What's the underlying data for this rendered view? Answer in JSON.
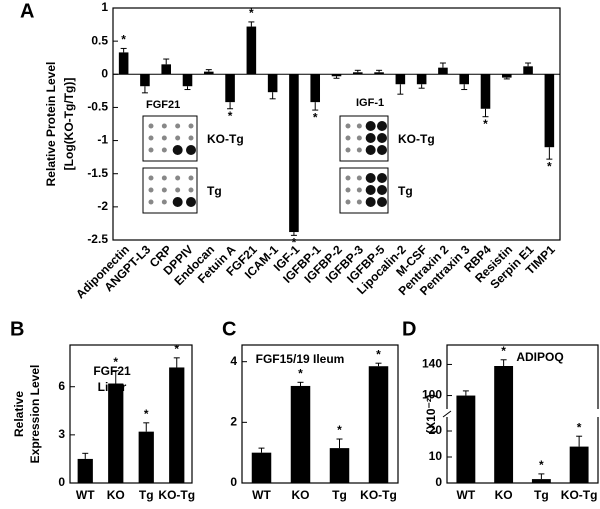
{
  "chart_data": [
    {
      "type": "bar",
      "panel_label": "A",
      "ylabel": [
        "Relative Protein Level",
        "[Log(KO-Tg/Tg)]"
      ],
      "categories": [
        "Adiponectin",
        "ANGPT-L3",
        "CRP",
        "DPPIV",
        "Endocan",
        "Fetuin A",
        "FGF21",
        "ICAM-1",
        "IGF-1",
        "IGFBP-1",
        "IGFBP-2",
        "IGFBP-3",
        "IGFBP-5",
        "Lipocalin-2",
        "M-CSF",
        "Pentraxin 2",
        "Pentraxin 3",
        "RBP4",
        "Resistin",
        "Serpin E1",
        "TIMP1"
      ],
      "values": [
        0.33,
        -0.18,
        0.15,
        -0.18,
        0.04,
        -0.42,
        0.72,
        -0.27,
        -2.38,
        -0.42,
        -0.03,
        0.03,
        0.03,
        -0.15,
        -0.15,
        0.1,
        -0.15,
        -0.52,
        -0.05,
        0.12,
        -1.1
      ],
      "errors": [
        0.06,
        0.1,
        0.08,
        0.05,
        0.03,
        0.1,
        0.07,
        0.1,
        0.05,
        0.12,
        0.03,
        0.03,
        0.03,
        0.15,
        0.06,
        0.07,
        0.08,
        0.12,
        0.02,
        0.05,
        0.18
      ],
      "annotations": [
        "*",
        null,
        null,
        null,
        null,
        "*",
        "*",
        null,
        "*",
        "*",
        null,
        null,
        null,
        null,
        null,
        null,
        null,
        "*",
        null,
        null,
        "*"
      ],
      "color": "#000000",
      "ylim": [
        -2.5,
        1
      ],
      "yticks": [
        -2.5,
        -2,
        -1.5,
        -1,
        -0.5,
        0,
        0.5,
        1
      ],
      "insets": [
        {
          "label": "FGF21",
          "rows": [
            "KO-Tg",
            "Tg"
          ]
        },
        {
          "label": "IGF-1",
          "rows": [
            "KO-Tg",
            "Tg"
          ]
        }
      ]
    },
    {
      "type": "bar",
      "panel_label": "B",
      "ylabel": [
        "Relative",
        "Expression Level"
      ],
      "title": [
        "FGF21",
        "Liver"
      ],
      "categories": [
        "WT",
        "KO",
        "Tg",
        "KO-Tg"
      ],
      "values": [
        1.5,
        6.2,
        3.2,
        7.2
      ],
      "errors": [
        0.35,
        0.8,
        0.55,
        0.6
      ],
      "annotations": [
        null,
        "*",
        "*",
        "*"
      ],
      "color": "#000000",
      "ylim": [
        0,
        8.6
      ],
      "yticks": [
        0,
        3,
        6
      ]
    },
    {
      "type": "bar",
      "panel_label": "C",
      "title": [
        "FGF15/19  Ileum"
      ],
      "categories": [
        "WT",
        "KO",
        "Tg",
        "KO-Tg"
      ],
      "values": [
        1.0,
        3.2,
        1.15,
        3.85
      ],
      "errors": [
        0.15,
        0.12,
        0.3,
        0.1
      ],
      "annotations": [
        null,
        "*",
        "*",
        "*"
      ],
      "color": "#000000",
      "ylim": [
        0,
        4.55
      ],
      "yticks": [
        0,
        2,
        4
      ]
    },
    {
      "type": "bar",
      "panel_label": "D",
      "ylabel": [
        "(X10⁻²)"
      ],
      "title": [
        "ADIPOQ"
      ],
      "categories": [
        "WT",
        "KO",
        "Tg",
        "KO-Tg"
      ],
      "values": [
        100,
        138,
        1.5,
        14
      ],
      "errors": [
        6,
        8,
        2,
        4
      ],
      "annotations": [
        null,
        "*",
        "*",
        "*"
      ],
      "color": "#000000",
      "ylim": [
        0,
        165
      ],
      "ybreak": [
        25,
        84
      ],
      "yticks": [
        0,
        10,
        20,
        100,
        140
      ]
    }
  ]
}
